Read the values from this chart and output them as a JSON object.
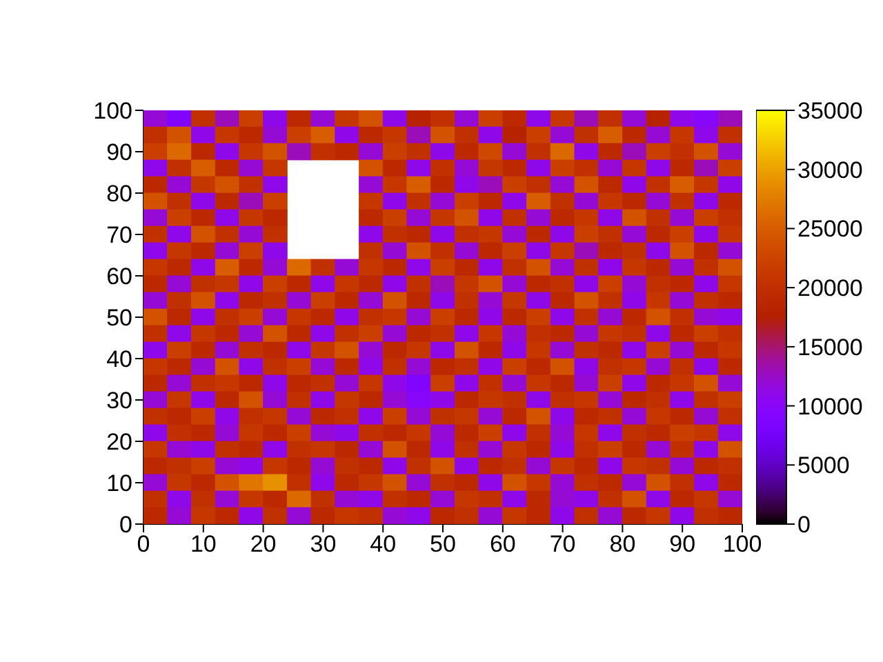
{
  "chart_data": {
    "type": "heatmap",
    "x": [
      2,
      6,
      10,
      14,
      18,
      22,
      26,
      30,
      34,
      38,
      42,
      46,
      50,
      54,
      58,
      62,
      66,
      70,
      74,
      78,
      82,
      86,
      90,
      94,
      98
    ],
    "y": [
      98,
      94,
      90,
      86,
      82,
      78,
      74,
      70,
      66,
      62,
      58,
      54,
      50,
      46,
      42,
      38,
      34,
      30,
      26,
      22,
      18,
      14,
      10,
      6,
      2
    ],
    "cells": [
      [
        12000,
        9000,
        20000,
        13000,
        22000,
        11000,
        19000,
        12000,
        21000,
        24000,
        11000,
        18000,
        20000,
        12000,
        22000,
        19000,
        11000,
        21000,
        13000,
        20000,
        12000,
        18000,
        11000,
        10000,
        13000
      ],
      [
        20000,
        24000,
        11000,
        21000,
        19000,
        12000,
        22000,
        25000,
        11000,
        19000,
        21000,
        13000,
        24000,
        20000,
        11000,
        18000,
        22000,
        12000,
        20000,
        25000,
        19000,
        12000,
        21000,
        11000,
        20000
      ],
      [
        22000,
        26000,
        19000,
        11000,
        21000,
        24000,
        13000,
        20000,
        19000,
        12000,
        22000,
        20000,
        11000,
        19000,
        23000,
        12000,
        20000,
        26000,
        11000,
        19000,
        13000,
        22000,
        20000,
        24000,
        12000
      ],
      [
        11000,
        20000,
        25000,
        19000,
        12000,
        21000,
        null,
        null,
        null,
        24000,
        19000,
        11000,
        20000,
        12000,
        21000,
        19000,
        11000,
        22000,
        20000,
        12000,
        21000,
        11000,
        19000,
        13000,
        22000
      ],
      [
        19000,
        12000,
        21000,
        24000,
        20000,
        11000,
        null,
        null,
        null,
        12000,
        21000,
        25000,
        19000,
        11000,
        13000,
        22000,
        20000,
        12000,
        24000,
        19000,
        11000,
        20000,
        25000,
        21000,
        11000
      ],
      [
        24000,
        20000,
        11000,
        19000,
        13000,
        22000,
        null,
        null,
        null,
        21000,
        11000,
        20000,
        12000,
        22000,
        19000,
        11000,
        25000,
        20000,
        12000,
        21000,
        19000,
        12000,
        20000,
        11000,
        19000
      ],
      [
        12000,
        22000,
        19000,
        11000,
        21000,
        19000,
        null,
        null,
        null,
        19000,
        22000,
        12000,
        21000,
        24000,
        11000,
        20000,
        12000,
        19000,
        21000,
        11000,
        24000,
        20000,
        12000,
        22000,
        20000
      ],
      [
        20000,
        11000,
        24000,
        20000,
        12000,
        20000,
        null,
        null,
        null,
        11000,
        20000,
        19000,
        11000,
        20000,
        21000,
        12000,
        19000,
        11000,
        22000,
        20000,
        12000,
        19000,
        22000,
        11000,
        21000
      ],
      [
        11000,
        21000,
        19000,
        12000,
        22000,
        11000,
        null,
        null,
        null,
        20000,
        12000,
        24000,
        20000,
        12000,
        19000,
        22000,
        11000,
        21000,
        13000,
        19000,
        20000,
        11000,
        24000,
        19000,
        12000
      ],
      [
        21000,
        19000,
        11000,
        25000,
        19000,
        12000,
        26000,
        20000,
        12000,
        21000,
        19000,
        11000,
        22000,
        19000,
        11000,
        20000,
        24000,
        12000,
        20000,
        11000,
        21000,
        19000,
        12000,
        20000,
        24000
      ],
      [
        19000,
        12000,
        20000,
        21000,
        11000,
        22000,
        19000,
        11000,
        21000,
        19000,
        11000,
        20000,
        13000,
        21000,
        24000,
        12000,
        19000,
        20000,
        11000,
        22000,
        12000,
        20000,
        19000,
        11000,
        21000
      ],
      [
        12000,
        20000,
        24000,
        11000,
        19000,
        20000,
        12000,
        22000,
        19000,
        12000,
        24000,
        19000,
        11000,
        20000,
        12000,
        21000,
        11000,
        19000,
        24000,
        20000,
        11000,
        21000,
        12000,
        20000,
        19000
      ],
      [
        24000,
        19000,
        11000,
        20000,
        22000,
        12000,
        21000,
        19000,
        11000,
        20000,
        21000,
        12000,
        22000,
        19000,
        11000,
        19000,
        22000,
        11000,
        20000,
        12000,
        19000,
        24000,
        20000,
        12000,
        11000
      ],
      [
        20000,
        11000,
        21000,
        19000,
        12000,
        24000,
        19000,
        11000,
        20000,
        22000,
        12000,
        19000,
        20000,
        11000,
        21000,
        12000,
        20000,
        19000,
        12000,
        21000,
        20000,
        11000,
        19000,
        22000,
        20000
      ],
      [
        11000,
        22000,
        19000,
        12000,
        20000,
        19000,
        11000,
        21000,
        24000,
        12000,
        19000,
        21000,
        11000,
        24000,
        19000,
        11000,
        21000,
        12000,
        20000,
        19000,
        11000,
        22000,
        12000,
        19000,
        21000
      ],
      [
        21000,
        19000,
        12000,
        24000,
        11000,
        20000,
        22000,
        12000,
        19000,
        11000,
        20000,
        12000,
        19000,
        20000,
        11000,
        22000,
        19000,
        24000,
        11000,
        20000,
        21000,
        12000,
        20000,
        11000,
        19000
      ],
      [
        19000,
        12000,
        20000,
        21000,
        19000,
        11000,
        19000,
        20000,
        12000,
        21000,
        11000,
        9000,
        22000,
        11000,
        20000,
        12000,
        21000,
        19000,
        12000,
        22000,
        11000,
        19000,
        21000,
        24000,
        12000
      ],
      [
        12000,
        21000,
        11000,
        19000,
        24000,
        12000,
        20000,
        11000,
        21000,
        19000,
        12000,
        10000,
        11000,
        19000,
        21000,
        20000,
        11000,
        20000,
        21000,
        12000,
        19000,
        20000,
        11000,
        20000,
        22000
      ],
      [
        20000,
        19000,
        22000,
        11000,
        20000,
        21000,
        12000,
        19000,
        20000,
        11000,
        22000,
        12000,
        20000,
        21000,
        12000,
        19000,
        24000,
        11000,
        19000,
        20000,
        12000,
        21000,
        19000,
        12000,
        20000
      ],
      [
        11000,
        20000,
        19000,
        12000,
        21000,
        19000,
        22000,
        12000,
        11000,
        20000,
        19000,
        21000,
        12000,
        19000,
        22000,
        11000,
        20000,
        12000,
        21000,
        11000,
        20000,
        19000,
        22000,
        21000,
        11000
      ],
      [
        21000,
        12000,
        11000,
        20000,
        19000,
        11000,
        20000,
        21000,
        19000,
        12000,
        24000,
        19000,
        11000,
        20000,
        12000,
        21000,
        19000,
        11000,
        20000,
        22000,
        19000,
        12000,
        20000,
        11000,
        24000
      ],
      [
        19000,
        20000,
        22000,
        12000,
        11000,
        21000,
        19000,
        12000,
        20000,
        19000,
        11000,
        20000,
        24000,
        11000,
        19000,
        20000,
        12000,
        21000,
        19000,
        11000,
        21000,
        20000,
        12000,
        19000,
        20000
      ],
      [
        12000,
        21000,
        19000,
        24000,
        27000,
        29000,
        20000,
        11000,
        19000,
        21000,
        24000,
        12000,
        20000,
        19000,
        11000,
        24000,
        21000,
        12000,
        20000,
        19000,
        12000,
        24000,
        20000,
        11000,
        19000
      ],
      [
        20000,
        11000,
        20000,
        12000,
        21000,
        19000,
        26000,
        20000,
        12000,
        11000,
        20000,
        19000,
        12000,
        21000,
        20000,
        11000,
        19000,
        12000,
        11000,
        20000,
        24000,
        11000,
        19000,
        21000,
        12000
      ],
      [
        19000,
        12000,
        21000,
        19000,
        11000,
        20000,
        12000,
        19000,
        21000,
        20000,
        12000,
        11000,
        19000,
        20000,
        12000,
        21000,
        19000,
        11000,
        20000,
        12000,
        19000,
        21000,
        11000,
        20000,
        19000
      ]
    ],
    "xlim": [
      0,
      100
    ],
    "xticks": [
      0,
      10,
      20,
      30,
      40,
      50,
      60,
      70,
      80,
      90,
      100
    ],
    "ylim": [
      0,
      100
    ],
    "yticks": [
      0,
      10,
      20,
      30,
      40,
      50,
      60,
      70,
      80,
      90,
      100
    ],
    "clim": [
      0,
      35000
    ],
    "cticks": [
      0,
      5000,
      10000,
      15000,
      20000,
      25000,
      30000,
      35000
    ]
  }
}
